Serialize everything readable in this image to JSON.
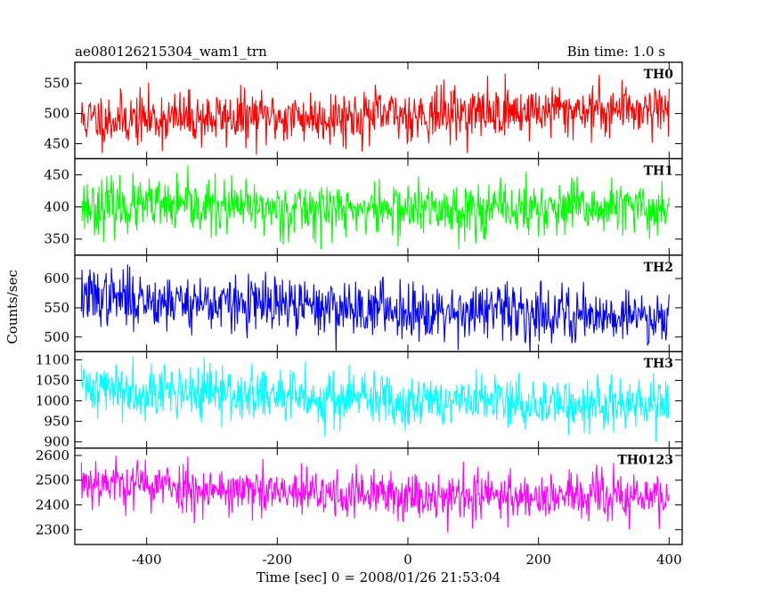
{
  "chart_data": {
    "type": "line",
    "title": "ae080126215304_wam1_trn",
    "bin_time": "Bin time: 1.0 s",
    "xlabel": "Time [sec] 0 = 2008/01/26 21:53:04",
    "ylabel": "Counts/sec",
    "xlim": [
      -510,
      420
    ],
    "xticks": [
      -400,
      -200,
      0,
      200,
      400
    ],
    "x_start": -500,
    "x_end": 400,
    "x_step": 1,
    "panels": [
      {
        "name": "TH0",
        "color": "#ff0000",
        "ylim": [
          425,
          585
        ],
        "yticks": [
          450,
          500,
          550
        ],
        "trend": [
          [
            -500,
            490
          ],
          [
            -100,
            495
          ],
          [
            400,
            510
          ]
        ],
        "noise": 22,
        "seed": 11
      },
      {
        "name": "TH1",
        "color": "#00ff00",
        "ylim": [
          325,
          475
        ],
        "yticks": [
          350,
          400,
          450
        ],
        "trend": [
          [
            -500,
            402
          ],
          [
            -100,
            396
          ],
          [
            400,
            397
          ]
        ],
        "noise": 21,
        "seed": 23
      },
      {
        "name": "TH2",
        "color": "#0000ff",
        "ylim": [
          475,
          640
        ],
        "yticks": [
          500,
          550,
          600
        ],
        "trend": [
          [
            -500,
            570
          ],
          [
            -250,
            555
          ],
          [
            400,
            535
          ]
        ],
        "noise": 24,
        "seed": 37
      },
      {
        "name": "TH3",
        "color": "#00ffff",
        "ylim": [
          885,
          1120
        ],
        "yticks": [
          900,
          950,
          1000,
          1050,
          1100
        ],
        "trend": [
          [
            -500,
            1035
          ],
          [
            -200,
            1010
          ],
          [
            400,
            985
          ]
        ],
        "noise": 33,
        "seed": 41
      },
      {
        "name": "TH0123",
        "color": "#ff00ff",
        "ylim": [
          2240,
          2630
        ],
        "yticks": [
          2300,
          2400,
          2500,
          2600
        ],
        "trend": [
          [
            -500,
            2500
          ],
          [
            -200,
            2445
          ],
          [
            400,
            2430
          ]
        ],
        "noise": 50,
        "seed": 53
      }
    ]
  }
}
